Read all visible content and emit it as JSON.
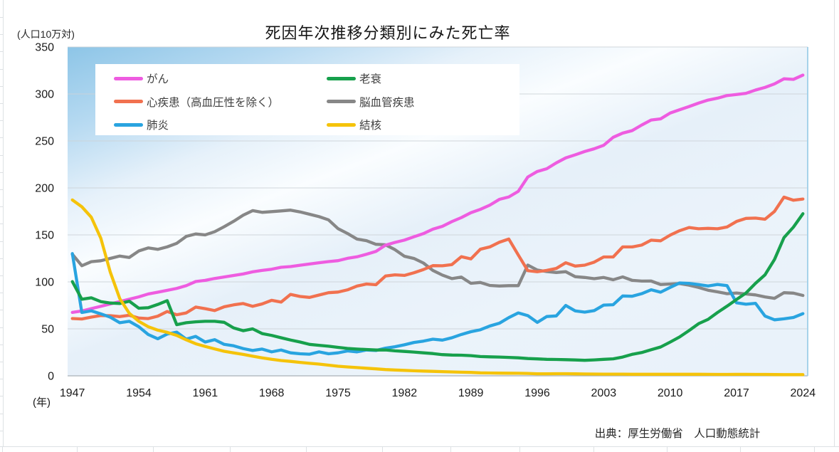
{
  "title": "死因年次推移分類別にみた死亡率",
  "y_axis_unit": "(人口10万対)",
  "x_axis_unit": "(年)",
  "source": "出典：厚生労働省　人口動態統計",
  "chart_data": {
    "type": "line",
    "title": "死因年次推移分類別にみた死亡率",
    "xlabel": "年",
    "ylabel": "人口10万対",
    "ylim": [
      0,
      350
    ],
    "y_tick_step": 50,
    "y_tick_labels": [
      0,
      50,
      100,
      150,
      200,
      250,
      300,
      350
    ],
    "x_tick_years": [
      1947,
      1954,
      1961,
      1968,
      1975,
      1982,
      1989,
      1996,
      2003,
      2010,
      2017,
      2024
    ],
    "grid": true,
    "legend_position": "top-left-inside",
    "years": [
      1947,
      1948,
      1949,
      1950,
      1951,
      1952,
      1953,
      1954,
      1955,
      1956,
      1957,
      1958,
      1959,
      1960,
      1961,
      1962,
      1963,
      1964,
      1965,
      1966,
      1967,
      1968,
      1969,
      1970,
      1971,
      1972,
      1973,
      1974,
      1975,
      1976,
      1977,
      1978,
      1979,
      1980,
      1981,
      1982,
      1983,
      1984,
      1985,
      1986,
      1987,
      1988,
      1989,
      1990,
      1991,
      1992,
      1993,
      1994,
      1995,
      1996,
      1997,
      1998,
      1999,
      2000,
      2001,
      2002,
      2003,
      2004,
      2005,
      2006,
      2007,
      2008,
      2009,
      2010,
      2011,
      2012,
      2013,
      2014,
      2015,
      2016,
      2017,
      2018,
      2019,
      2020,
      2021,
      2022,
      2023,
      2024
    ],
    "series": [
      {
        "key": "cerebrovascular",
        "name": "脳血管疾患",
        "color": "#878787",
        "legend_col": 1,
        "legend_row": 1,
        "values": [
          129.4,
          117.2,
          121.5,
          122.5,
          125.0,
          127.5,
          126.0,
          132.9,
          136.1,
          134.6,
          137.3,
          141.0,
          148.4,
          151.0,
          150.0,
          153.4,
          158.7,
          164.5,
          171.0,
          175.8,
          174.0,
          174.8,
          175.5,
          176.4,
          174.5,
          172.0,
          169.5,
          166.0,
          156.7,
          151.5,
          145.5,
          143.9,
          140.0,
          139.5,
          134.3,
          127.3,
          124.9,
          120.1,
          112.2,
          107.2,
          103.5,
          105.1,
          98.5,
          99.4,
          96.2,
          95.6,
          96.0,
          96.0,
          117.9,
          112.6,
          111.0,
          110.0,
          110.8,
          105.5,
          104.7,
          103.4,
          104.7,
          102.3,
          105.3,
          101.7,
          100.8,
          100.9,
          97.2,
          97.7,
          98.2,
          96.5,
          94.1,
          91.1,
          89.4,
          87.4,
          88.2,
          87.1,
          86.1,
          84.0,
          82.5,
          88.5,
          88.0,
          85.5
        ]
      },
      {
        "key": "heart-disease",
        "name": "心疾患（高血圧性を除く）",
        "color": "#F1714F",
        "legend_col": 0,
        "legend_row": 1,
        "values": [
          61.0,
          60.5,
          62.5,
          64.2,
          64.0,
          63.0,
          64.5,
          61.5,
          60.9,
          63.5,
          68.5,
          65.0,
          67.0,
          73.2,
          71.5,
          69.5,
          73.5,
          75.5,
          77.0,
          74.0,
          76.5,
          80.4,
          78.5,
          86.7,
          84.5,
          83.5,
          86.0,
          88.5,
          89.2,
          91.5,
          95.5,
          97.7,
          97.0,
          106.2,
          107.5,
          106.9,
          109.7,
          113.1,
          117.3,
          117.1,
          118.4,
          126.8,
          124.5,
          134.8,
          137.2,
          142.2,
          145.6,
          128.6,
          112.0,
          110.8,
          112.2,
          114.3,
          120.4,
          116.8,
          117.8,
          121.0,
          126.5,
          126.5,
          137.2,
          137.2,
          139.2,
          144.4,
          143.7,
          149.8,
          154.5,
          157.9,
          156.5,
          157.0,
          156.5,
          158.4,
          164.3,
          167.6,
          167.9,
          166.7,
          174.9,
          190.2,
          186.9,
          188.2
        ]
      },
      {
        "key": "cancer",
        "name": "がん",
        "color": "#EE5CE0",
        "legend_col": 0,
        "legend_row": 0,
        "values": [
          67.5,
          69.0,
          71.5,
          74.0,
          76.5,
          79.0,
          81.5,
          84.0,
          87.1,
          89.0,
          91.0,
          93.0,
          96.0,
          100.4,
          101.6,
          103.6,
          105.2,
          106.8,
          108.4,
          110.7,
          112.2,
          113.5,
          115.5,
          116.3,
          117.7,
          119.0,
          120.4,
          121.6,
          122.6,
          125.1,
          126.7,
          129.4,
          132.4,
          139.1,
          142.0,
          144.5,
          148.0,
          151.4,
          156.1,
          159.2,
          164.2,
          168.4,
          173.6,
          177.2,
          181.7,
          187.8,
          190.4,
          196.4,
          211.6,
          217.5,
          220.4,
          226.7,
          232.0,
          235.2,
          238.8,
          241.7,
          245.4,
          253.9,
          258.3,
          261.0,
          266.9,
          272.3,
          273.5,
          279.7,
          283.2,
          286.6,
          290.3,
          293.5,
          295.5,
          298.3,
          299.5,
          300.7,
          304.2,
          307.0,
          310.7,
          316.1,
          315.5,
          320.1
        ]
      },
      {
        "key": "pneumonia",
        "name": "肺炎",
        "color": "#29A4E0",
        "legend_col": 0,
        "legend_row": 2,
        "values": [
          130.1,
          67.4,
          69.2,
          66.0,
          62.4,
          56.5,
          58.0,
          52.3,
          44.0,
          39.5,
          44.5,
          46.5,
          39.0,
          42.0,
          36.0,
          38.5,
          33.5,
          32.0,
          29.0,
          27.0,
          28.5,
          25.5,
          27.5,
          24.5,
          23.5,
          23.0,
          25.5,
          23.5,
          24.5,
          26.5,
          25.5,
          27.5,
          27.0,
          29.5,
          31.0,
          33.0,
          35.5,
          37.0,
          39.0,
          38.0,
          40.5,
          44.0,
          47.0,
          49.0,
          53.0,
          56.0,
          62.0,
          67.0,
          64.1,
          56.9,
          63.1,
          63.8,
          74.9,
          69.2,
          67.8,
          69.4,
          75.3,
          75.7,
          85.0,
          84.7,
          87.4,
          91.6,
          89.0,
          94.1,
          98.9,
          98.4,
          97.2,
          95.6,
          97.3,
          96.0,
          77.7,
          76.2,
          77.2,
          63.6,
          59.6,
          60.7,
          62.1,
          66.2
        ]
      },
      {
        "key": "senility",
        "name": "老衰",
        "color": "#17A04C",
        "legend_col": 1,
        "legend_row": 0,
        "values": [
          100.3,
          81.5,
          83.0,
          79.0,
          77.5,
          77.0,
          79.5,
          72.0,
          72.5,
          76.0,
          80.0,
          54.5,
          56.5,
          57.5,
          58.0,
          58.0,
          57.0,
          51.0,
          48.0,
          50.0,
          45.0,
          43.0,
          40.5,
          38.1,
          36.0,
          33.5,
          32.5,
          31.5,
          30.3,
          29.2,
          28.5,
          28.0,
          27.5,
          27.6,
          26.6,
          26.0,
          25.3,
          24.5,
          23.7,
          22.6,
          22.1,
          22.0,
          21.5,
          20.5,
          20.2,
          20.0,
          19.6,
          19.2,
          18.4,
          18.0,
          17.6,
          17.4,
          17.2,
          16.9,
          16.5,
          17.0,
          17.6,
          18.1,
          20.0,
          22.9,
          24.8,
          27.8,
          30.7,
          35.9,
          41.4,
          48.2,
          55.5,
          60.1,
          67.4,
          74.2,
          81.3,
          88.2,
          98.5,
          107.5,
          123.8,
          147.1,
          158.3,
          172.6
        ]
      },
      {
        "key": "tuberculosis",
        "name": "結核",
        "color": "#F5C30A",
        "legend_col": 1,
        "legend_row": 2,
        "values": [
          187.2,
          179.9,
          168.8,
          146.4,
          110.3,
          82.2,
          66.5,
          58.0,
          52.3,
          48.6,
          46.3,
          43.0,
          38.3,
          34.2,
          31.3,
          28.6,
          26.1,
          24.4,
          22.8,
          20.9,
          19.2,
          17.6,
          16.3,
          15.4,
          14.3,
          13.3,
          12.5,
          11.4,
          10.2,
          9.5,
          8.8,
          8.1,
          7.4,
          6.7,
          6.2,
          5.8,
          5.4,
          5.1,
          4.8,
          4.5,
          4.2,
          3.9,
          3.6,
          3.2,
          3.0,
          2.9,
          2.8,
          2.7,
          2.6,
          2.2,
          2.2,
          2.3,
          2.3,
          2.1,
          2.0,
          1.9,
          1.8,
          1.8,
          1.8,
          1.7,
          1.7,
          1.7,
          1.7,
          1.7,
          1.7,
          1.7,
          1.7,
          1.6,
          1.5,
          1.5,
          1.6,
          1.6,
          1.5,
          1.5,
          1.4,
          1.3,
          1.3,
          1.3
        ]
      }
    ]
  }
}
